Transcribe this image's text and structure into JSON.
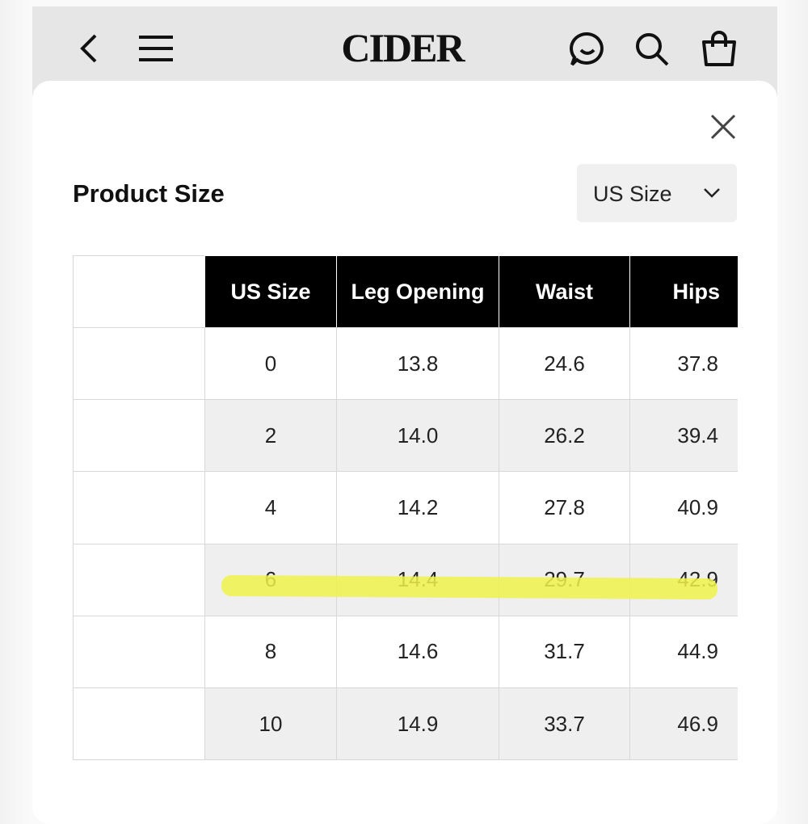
{
  "header": {
    "brand": "CIDER"
  },
  "modal": {
    "title": "Product Size",
    "unit_selector": "US Size"
  },
  "table": {
    "columns": [
      "US Size",
      "Leg Opening",
      "Waist",
      "Hips"
    ],
    "rows": [
      [
        "0",
        "13.8",
        "24.6",
        "37.8"
      ],
      [
        "2",
        "14.0",
        "26.2",
        "39.4"
      ],
      [
        "4",
        "14.2",
        "27.8",
        "40.9"
      ],
      [
        "6",
        "14.4",
        "29.7",
        "42.9"
      ],
      [
        "8",
        "14.6",
        "31.7",
        "44.9"
      ],
      [
        "10",
        "14.9",
        "33.7",
        "46.9"
      ]
    ]
  }
}
